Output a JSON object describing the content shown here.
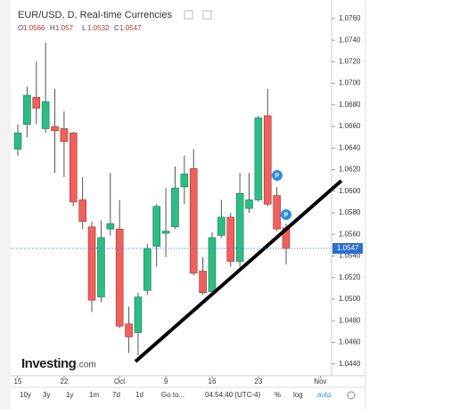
{
  "chart_data": {
    "type": "candlestick",
    "title": "EUR/USD, D, Real-time Currencies",
    "ohlc": [
      {
        "key": "O",
        "value": 1.0566
      },
      {
        "key": "H",
        "value": 1.057
      },
      {
        "key": "L",
        "value": 1.0532
      },
      {
        "key": "C",
        "value": 1.0547
      }
    ],
    "open": [
      1.0639,
      1.0662,
      1.0687,
      1.0658,
      1.066,
      1.0658,
      1.0654,
      1.0592,
      1.0567,
      1.0502,
      1.0565,
      1.0565,
      1.0477,
      1.0469,
      1.0508,
      1.0549,
      1.0561,
      1.0567,
      1.0604,
      1.0621,
      1.0526,
      1.0507,
      1.0559,
      1.0576,
      1.0535,
      1.0584,
      1.0592,
      1.067,
      1.0596,
      1.0566
    ],
    "high": [
      1.0662,
      1.0697,
      1.072,
      1.0738,
      1.0695,
      1.0674,
      1.0655,
      1.0613,
      1.0572,
      1.0573,
      1.0617,
      1.0592,
      1.0493,
      1.0506,
      1.0551,
      1.0588,
      1.0603,
      1.0623,
      1.0633,
      1.0639,
      1.0539,
      1.0562,
      1.0592,
      1.058,
      1.0617,
      1.0617,
      1.067,
      1.0695,
      1.0604,
      1.057
    ],
    "low": [
      1.0633,
      1.065,
      1.0662,
      1.0654,
      1.0617,
      1.0613,
      1.0586,
      1.0565,
      1.0488,
      1.0497,
      1.0559,
      1.0473,
      1.045,
      1.0448,
      1.0504,
      1.053,
      1.0539,
      1.0565,
      1.0588,
      1.0522,
      1.0504,
      1.0504,
      1.0557,
      1.053,
      1.053,
      1.058,
      1.059,
      1.0586,
      1.0563,
      1.0532
    ],
    "close": [
      1.0654,
      1.0689,
      1.0677,
      1.0683,
      1.0656,
      1.0646,
      1.059,
      1.0572,
      1.0499,
      1.0557,
      1.057,
      1.0475,
      1.0465,
      1.0502,
      1.0547,
      1.0586,
      1.0563,
      1.0603,
      1.0616,
      1.0524,
      1.0506,
      1.0557,
      1.0576,
      1.0535,
      1.0598,
      1.0592,
      1.0668,
      1.0588,
      1.0565,
      1.0547
    ],
    "up_color": "#2dbd84",
    "down_color": "#f0605d",
    "ylim": [
      1.0429,
      1.0769
    ],
    "yticks": [
      {
        "value": 1.044,
        "label": "1.0440"
      },
      {
        "value": 1.046,
        "label": "1.0460"
      },
      {
        "value": 1.048,
        "label": "1.0480"
      },
      {
        "value": 1.05,
        "label": "1.0500"
      },
      {
        "value": 1.052,
        "label": "1.0520"
      },
      {
        "value": 1.054,
        "label": "1.0540"
      },
      {
        "value": 1.056,
        "label": "1.0560"
      },
      {
        "value": 1.058,
        "label": "1.0580"
      },
      {
        "value": 1.06,
        "label": "1.0600"
      },
      {
        "value": 1.062,
        "label": "1.0620"
      },
      {
        "value": 1.064,
        "label": "1.0640"
      },
      {
        "value": 1.066,
        "label": "1.0660"
      },
      {
        "value": 1.068,
        "label": "1.0680"
      },
      {
        "value": 1.07,
        "label": "1.0700"
      },
      {
        "value": 1.072,
        "label": "1.0720"
      },
      {
        "value": 1.074,
        "label": "1.0740"
      },
      {
        "value": 1.076,
        "label": "1.0760"
      }
    ],
    "xticks": [
      {
        "value": 0,
        "label": "15"
      },
      {
        "value": 5,
        "label": "22"
      },
      {
        "value": 11,
        "label": "Oct"
      },
      {
        "value": 16,
        "label": "9"
      },
      {
        "value": 21,
        "label": "16"
      },
      {
        "value": 26,
        "label": "23"
      },
      {
        "value": 32.7,
        "label": "Nov"
      }
    ],
    "last_price": 1.0547,
    "markers": [
      "P",
      "P"
    ]
  },
  "logo": {
    "brand": "Investing",
    "suffix": ".com"
  },
  "toolbar": {
    "ranges": [
      "10y",
      "3y",
      "1y",
      "1m",
      "7d",
      "1d"
    ],
    "goto": "Go to...",
    "time": "04:54:40 (UTC-4)",
    "percent": "%",
    "log": "log",
    "auto": "auto"
  }
}
